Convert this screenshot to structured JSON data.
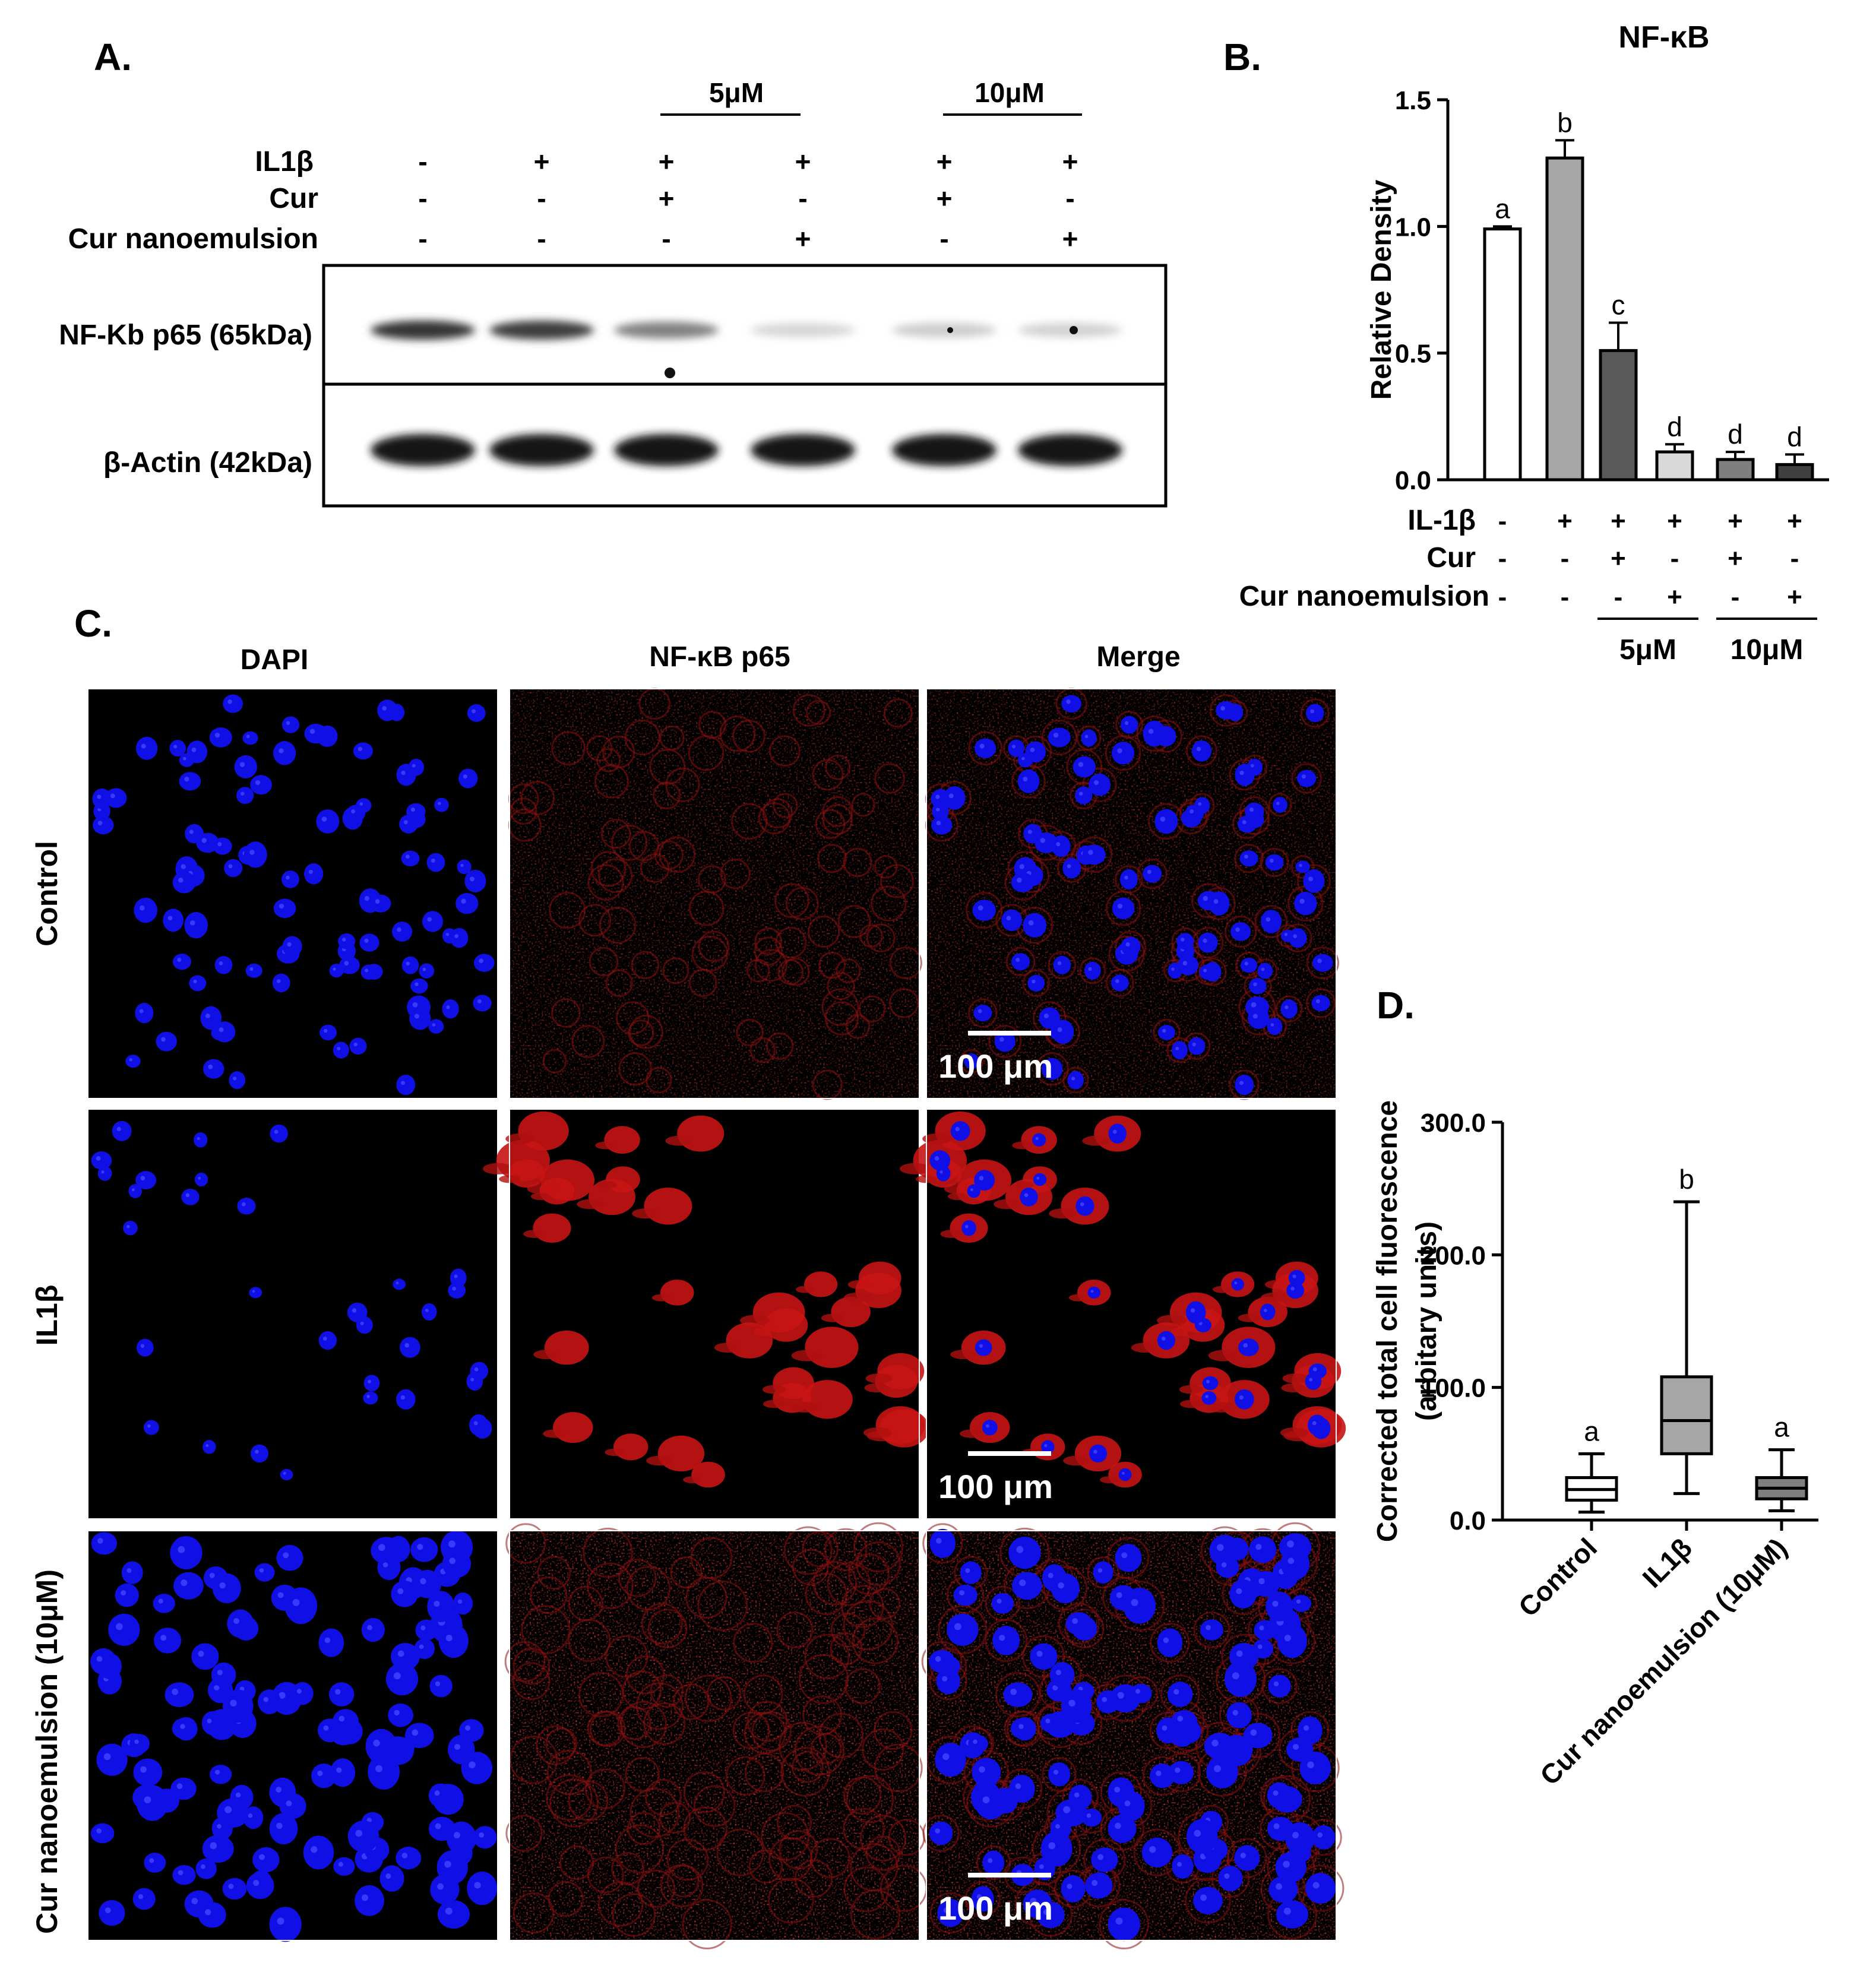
{
  "panel_a": {
    "label": "A.",
    "conc_groups": [
      "5μM",
      "10μM"
    ],
    "treatments": [
      {
        "name": "IL1β",
        "values": [
          "-",
          "+",
          "+",
          "+",
          "+",
          "+"
        ]
      },
      {
        "name": "Cur",
        "values": [
          "-",
          "-",
          "+",
          "-",
          "+",
          "-"
        ]
      },
      {
        "name": "Cur nanoemulsion",
        "values": [
          "-",
          "-",
          "-",
          "+",
          "-",
          "+"
        ]
      }
    ],
    "blots": [
      {
        "label": "NF-Kb p65 (65kDa)",
        "intensity": [
          0.88,
          0.85,
          0.55,
          0.18,
          0.22,
          0.2
        ]
      },
      {
        "label": "β-Actin (42kDa)",
        "intensity": [
          1,
          1,
          1,
          1,
          1,
          1
        ]
      }
    ]
  },
  "panel_b": {
    "label": "B.",
    "chart_data": {
      "type": "bar",
      "title": "NF-κB",
      "ylabel": "Relative Density",
      "ylim": [
        0,
        1.5
      ],
      "yticks": [
        "0.0",
        "0.5",
        "1.0",
        "1.5"
      ],
      "values": [
        0.99,
        1.27,
        0.51,
        0.11,
        0.08,
        0.06
      ],
      "errors": [
        0.01,
        0.07,
        0.11,
        0.03,
        0.03,
        0.04
      ],
      "letters": [
        "a",
        "b",
        "c",
        "d",
        "d",
        "d"
      ],
      "bar_colors": [
        "#ffffff",
        "#a6a6a6",
        "#595959",
        "#d9d9d9",
        "#7f7f7f",
        "#404040"
      ],
      "rows": [
        {
          "name": "IL-1β",
          "values": [
            "-",
            "+",
            "+",
            "+",
            "+",
            "+"
          ]
        },
        {
          "name": "Cur",
          "values": [
            "-",
            "-",
            "+",
            "-",
            "+",
            "-"
          ]
        },
        {
          "name": "Cur nanoemulsion",
          "values": [
            "-",
            "-",
            "-",
            "+",
            "-",
            "+"
          ]
        }
      ],
      "groups": [
        "5μM",
        "10μM"
      ]
    }
  },
  "panel_c": {
    "label": "C.",
    "columns": [
      "DAPI",
      "NF-κB p65",
      "Merge"
    ],
    "rows": [
      "Control",
      "IL1β",
      "Cur nanoemulsion (10μM)"
    ],
    "scale_bar": "100 μm"
  },
  "panel_d": {
    "label": "D.",
    "chart_data": {
      "type": "box",
      "ylabel_lines": [
        "Corrected total cell fluorescence",
        "(arbitary units)"
      ],
      "ylim": [
        0,
        300
      ],
      "yticks": [
        "0.0",
        "100.0",
        "200.0",
        "300.0"
      ],
      "categories": [
        "Control",
        "IL1β",
        "Cur nanoemulsion (10μM)"
      ],
      "boxes": [
        {
          "min": 6,
          "q1": 15,
          "median": 23,
          "q3": 32,
          "max": 50
        },
        {
          "min": 20,
          "q1": 50,
          "median": 75,
          "q3": 108,
          "max": 240
        },
        {
          "min": 7,
          "q1": 16,
          "median": 24,
          "q3": 32,
          "max": 53
        }
      ],
      "fills": [
        "#ffffff",
        "#a6a6a6",
        "#7f7f7f"
      ],
      "letters": [
        "a",
        "b",
        "a"
      ]
    }
  }
}
